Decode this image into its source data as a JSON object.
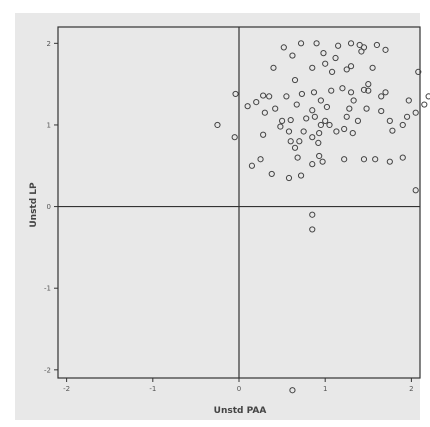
{
  "chart_data": {
    "type": "scatter",
    "xlabel": "Unstd PAA",
    "ylabel": "Unstd LP",
    "xlim": [
      -2.1,
      2.1
    ],
    "ylim": [
      -2.1,
      2.2
    ],
    "xticks": [
      -2,
      -1,
      0,
      1,
      2
    ],
    "yticks": [
      -2,
      -1,
      0,
      1,
      2
    ],
    "xtick_labels": [
      "-2",
      "-1",
      "0",
      "1",
      "2"
    ],
    "ytick_labels": [
      "-2",
      "-1",
      "0",
      "1",
      "2"
    ],
    "reference_lines": {
      "x": 0,
      "y": 0
    },
    "grid": false,
    "colors": {
      "panel": "#e8e8e8",
      "frame": "#333333",
      "marker": "#444444"
    },
    "points": [
      [
        0.52,
        1.95
      ],
      [
        0.72,
        2.0
      ],
      [
        0.9,
        2.0
      ],
      [
        1.3,
        2.0
      ],
      [
        1.4,
        1.98
      ],
      [
        1.6,
        1.98
      ],
      [
        1.15,
        1.97
      ],
      [
        1.45,
        1.95
      ],
      [
        1.42,
        1.9
      ],
      [
        0.98,
        1.88
      ],
      [
        1.7,
        1.92
      ],
      [
        0.62,
        1.85
      ],
      [
        1.12,
        1.82
      ],
      [
        1.0,
        1.75
      ],
      [
        0.4,
        1.7
      ],
      [
        0.85,
        1.7
      ],
      [
        1.3,
        1.72
      ],
      [
        1.55,
        1.7
      ],
      [
        1.25,
        1.68
      ],
      [
        1.08,
        1.65
      ],
      [
        2.08,
        1.65
      ],
      [
        0.65,
        1.55
      ],
      [
        1.5,
        1.5
      ],
      [
        1.2,
        1.45
      ],
      [
        0.87,
        1.4
      ],
      [
        1.07,
        1.42
      ],
      [
        1.3,
        1.4
      ],
      [
        1.45,
        1.43
      ],
      [
        1.5,
        1.42
      ],
      [
        0.28,
        1.36
      ],
      [
        0.35,
        1.35
      ],
      [
        0.2,
        1.28
      ],
      [
        0.55,
        1.35
      ],
      [
        0.73,
        1.38
      ],
      [
        1.33,
        1.3
      ],
      [
        1.7,
        1.4
      ],
      [
        0.95,
        1.3
      ],
      [
        -0.04,
        1.38
      ],
      [
        1.65,
        1.35
      ],
      [
        1.97,
        1.3
      ],
      [
        2.2,
        1.35
      ],
      [
        0.1,
        1.23
      ],
      [
        0.42,
        1.2
      ],
      [
        0.67,
        1.25
      ],
      [
        1.02,
        1.22
      ],
      [
        1.28,
        1.2
      ],
      [
        1.48,
        1.2
      ],
      [
        1.65,
        1.17
      ],
      [
        2.15,
        1.25
      ],
      [
        0.85,
        1.18
      ],
      [
        0.3,
        1.15
      ],
      [
        0.88,
        1.1
      ],
      [
        1.25,
        1.1
      ],
      [
        0.5,
        1.05
      ],
      [
        1.0,
        1.05
      ],
      [
        0.78,
        1.08
      ],
      [
        1.38,
        1.05
      ],
      [
        1.95,
        1.1
      ],
      [
        2.05,
        1.15
      ],
      [
        0.6,
        1.06
      ],
      [
        0.95,
        1.0
      ],
      [
        1.05,
        1.0
      ],
      [
        1.75,
        1.05
      ],
      [
        1.9,
        1.0
      ],
      [
        0.48,
        0.98
      ],
      [
        0.58,
        0.92
      ],
      [
        1.22,
        0.95
      ],
      [
        0.75,
        0.92
      ],
      [
        0.93,
        0.9
      ],
      [
        1.13,
        0.92
      ],
      [
        1.32,
        0.9
      ],
      [
        1.78,
        0.93
      ],
      [
        0.28,
        0.88
      ],
      [
        0.85,
        0.85
      ],
      [
        0.92,
        0.78
      ],
      [
        0.6,
        0.8
      ],
      [
        0.7,
        0.8
      ],
      [
        0.65,
        0.72
      ],
      [
        0.68,
        0.6
      ],
      [
        0.93,
        0.62
      ],
      [
        0.97,
        0.55
      ],
      [
        1.22,
        0.58
      ],
      [
        1.45,
        0.58
      ],
      [
        1.58,
        0.58
      ],
      [
        0.85,
        0.52
      ],
      [
        0.25,
        0.58
      ],
      [
        0.38,
        0.4
      ],
      [
        0.58,
        0.35
      ],
      [
        0.72,
        0.38
      ],
      [
        1.75,
        0.55
      ],
      [
        1.9,
        0.6
      ],
      [
        0.15,
        0.5
      ],
      [
        -0.25,
        1.0
      ],
      [
        -0.05,
        0.85
      ],
      [
        2.05,
        0.2
      ],
      [
        0.85,
        -0.1
      ],
      [
        0.85,
        -0.28
      ],
      [
        0.62,
        -2.25
      ]
    ]
  }
}
